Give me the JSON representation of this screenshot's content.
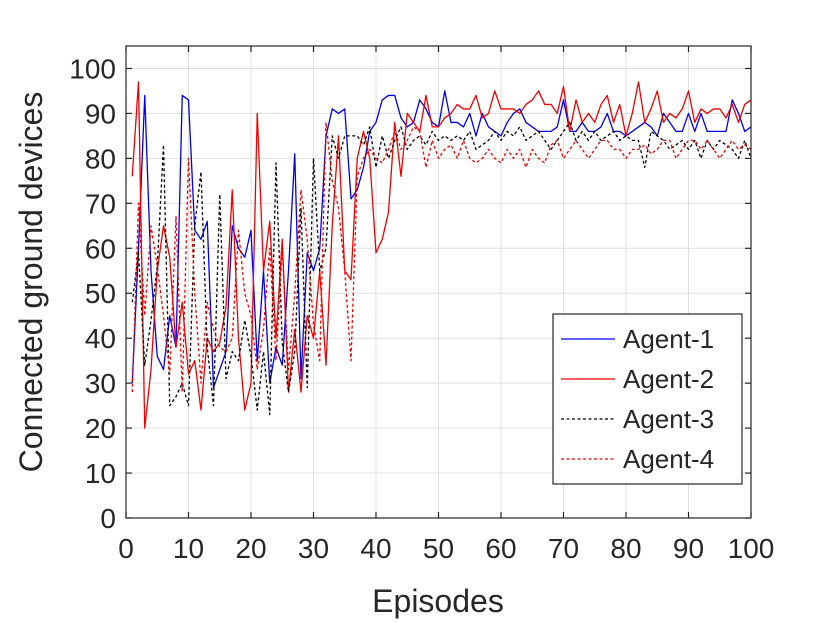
{
  "chart_data": {
    "type": "line",
    "xlabel": "Episodes",
    "ylabel": "Connected ground devices",
    "xlim": [
      0,
      100
    ],
    "ylim": [
      0,
      105
    ],
    "xticks": [
      0,
      10,
      20,
      30,
      40,
      50,
      60,
      70,
      80,
      90,
      100
    ],
    "yticks": [
      0,
      10,
      20,
      30,
      40,
      50,
      60,
      70,
      80,
      90,
      100
    ],
    "xtick_labels": [
      "0",
      "10",
      "20",
      "30",
      "40",
      "50",
      "60",
      "70",
      "80",
      "90",
      "100"
    ],
    "ytick_labels": [
      "0",
      "10",
      "20",
      "30",
      "40",
      "50",
      "60",
      "70",
      "80",
      "90",
      "100"
    ],
    "grid": true,
    "legend_position": "bottom-right",
    "x": [
      1,
      2,
      3,
      4,
      5,
      6,
      7,
      8,
      9,
      10,
      11,
      12,
      13,
      14,
      15,
      16,
      17,
      18,
      19,
      20,
      21,
      22,
      23,
      24,
      25,
      26,
      27,
      28,
      29,
      30,
      31,
      32,
      33,
      34,
      35,
      36,
      37,
      38,
      39,
      40,
      41,
      42,
      43,
      44,
      45,
      46,
      47,
      48,
      49,
      50,
      51,
      52,
      53,
      54,
      55,
      56,
      57,
      58,
      59,
      60,
      61,
      62,
      63,
      64,
      65,
      66,
      67,
      68,
      69,
      70,
      71,
      72,
      73,
      74,
      75,
      76,
      77,
      78,
      79,
      80,
      81,
      82,
      83,
      84,
      85,
      86,
      87,
      88,
      89,
      90,
      91,
      92,
      93,
      94,
      95,
      96,
      97,
      98,
      99,
      100
    ],
    "series": [
      {
        "name": "Agent-1",
        "color": "#0000ee",
        "dash": "solid",
        "values": [
          30,
          60,
          94,
          55,
          36,
          33,
          45,
          38,
          94,
          93,
          64,
          62,
          66,
          29,
          33,
          37,
          65,
          60,
          58,
          64,
          35,
          55,
          30,
          38,
          34,
          55,
          81,
          31,
          59,
          55,
          60,
          85,
          91,
          90,
          91,
          71,
          73,
          78,
          86,
          88,
          93,
          94,
          94,
          89,
          87,
          88,
          93,
          91,
          88,
          87,
          95,
          88,
          88,
          87,
          90,
          85,
          90,
          87,
          86,
          85,
          88,
          90,
          91,
          88,
          87,
          86,
          86,
          86,
          87,
          93,
          86,
          86,
          88,
          86,
          86,
          87,
          90,
          86,
          86,
          85,
          86,
          87,
          88,
          87,
          85,
          90,
          88,
          86,
          86,
          90,
          86,
          90,
          86,
          86,
          86,
          86,
          93,
          90,
          86,
          87
        ]
      },
      {
        "name": "Agent-2",
        "color": "#ee0000",
        "dash": "solid",
        "values": [
          76,
          97,
          20,
          33,
          55,
          65,
          58,
          38,
          48,
          32,
          35,
          24,
          40,
          37,
          39,
          47,
          73,
          40,
          24,
          30,
          90,
          55,
          66,
          40,
          62,
          28,
          42,
          28,
          45,
          40,
          55,
          34,
          65,
          85,
          55,
          53,
          80,
          86,
          80,
          59,
          62,
          68,
          88,
          76,
          90,
          88,
          86,
          94,
          87,
          87,
          89,
          90,
          92,
          91,
          91,
          94,
          89,
          90,
          95,
          91,
          91,
          91,
          90,
          92,
          93,
          95,
          92,
          92,
          90,
          96,
          86,
          93,
          88,
          90,
          88,
          92,
          94,
          88,
          92,
          85,
          90,
          97,
          88,
          91,
          95,
          88,
          90,
          89,
          91,
          95,
          88,
          91,
          90,
          91,
          91,
          89,
          92,
          88,
          92,
          93
        ]
      },
      {
        "name": "Agent-3",
        "color": "#000000",
        "dash": "dashed",
        "values": [
          48,
          59,
          34,
          44,
          56,
          83,
          25,
          27,
          30,
          25,
          65,
          77,
          38,
          25,
          72,
          31,
          37,
          35,
          44,
          36,
          24,
          37,
          23,
          79,
          39,
          28,
          37,
          69,
          29,
          80,
          55,
          60,
          85,
          80,
          85,
          85,
          85,
          83,
          87,
          78,
          85,
          80,
          84,
          87,
          82,
          84,
          85,
          83,
          86,
          84,
          85,
          84,
          85,
          84,
          86,
          82,
          83,
          84,
          86,
          84,
          86,
          85,
          87,
          84,
          85,
          86,
          84,
          82,
          84,
          86,
          88,
          84,
          86,
          84,
          86,
          84,
          85,
          86,
          84,
          85,
          84,
          84,
          78,
          86,
          85,
          84,
          82,
          83,
          84,
          82,
          84,
          80,
          84,
          82,
          84,
          83,
          82,
          80,
          84,
          80
        ]
      },
      {
        "name": "Agent-4",
        "color": "#ee0000",
        "dash": "dashed",
        "values": [
          28,
          70,
          45,
          65,
          56,
          45,
          32,
          67,
          28,
          80,
          50,
          30,
          48,
          42,
          38,
          37,
          40,
          64,
          50,
          45,
          33,
          42,
          60,
          35,
          60,
          33,
          50,
          73,
          62,
          43,
          35,
          88,
          75,
          69,
          55,
          35,
          76,
          80,
          82,
          80,
          79,
          82,
          86,
          82,
          84,
          87,
          86,
          78,
          84,
          80,
          82,
          83,
          80,
          84,
          80,
          79,
          80,
          82,
          80,
          79,
          82,
          80,
          82,
          78,
          82,
          80,
          79,
          83,
          84,
          80,
          82,
          84,
          82,
          80,
          82,
          84,
          84,
          82,
          82,
          80,
          82,
          82,
          83,
          81,
          82,
          84,
          84,
          80,
          82,
          84,
          84,
          82,
          84,
          82,
          80,
          82,
          84,
          82,
          83,
          82
        ]
      }
    ]
  }
}
